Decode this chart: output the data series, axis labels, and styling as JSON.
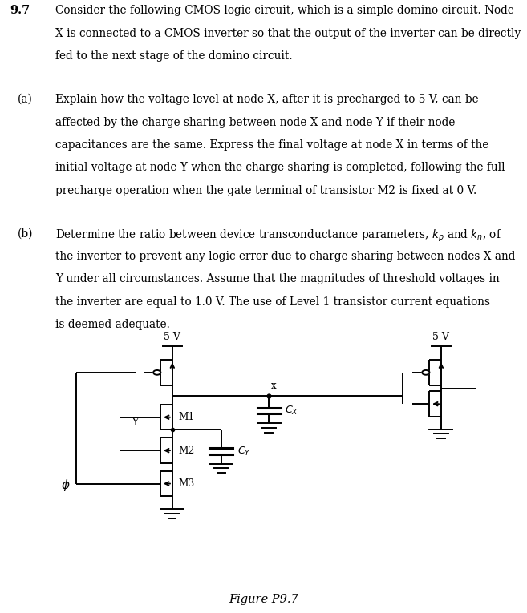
{
  "title_num": "9.7",
  "title_lines": [
    "Consider the following CMOS logic circuit, which is a simple domino circuit. Node",
    "X is connected to a CMOS inverter so that the output of the inverter can be directly",
    "fed to the next stage of the domino circuit."
  ],
  "part_a_label": "(a)",
  "part_a_lines": [
    "Explain how the voltage level at node X, after it is precharged to 5 V, can be",
    "affected by the charge sharing between node X and node Y if their node",
    "capacitances are the same. Express the final voltage at node X in terms of the",
    "initial voltage at node Y when the charge sharing is completed, following the full",
    "precharge operation when the gate terminal of transistor M2 is fixed at 0 V."
  ],
  "part_b_label": "(b)",
  "part_b_lines": [
    "Determine the ratio between device transconductance parameters, $k_p$ and $k_n$, of",
    "the inverter to prevent any logic error due to charge sharing between nodes X and",
    "Y under all circumstances. Assume that the magnitudes of threshold voltages in",
    "the inverter are equal to 1.0 V. The use of Level 1 transistor current equations",
    "is deemed adequate."
  ],
  "fig_label": "Figure P9.7",
  "bg_color": "#ffffff",
  "text_color": "#000000",
  "line_color": "#000000",
  "font_size_body": 9.8,
  "font_size_num": 10.5,
  "font_size_fig": 10.5,
  "lw": 1.4
}
